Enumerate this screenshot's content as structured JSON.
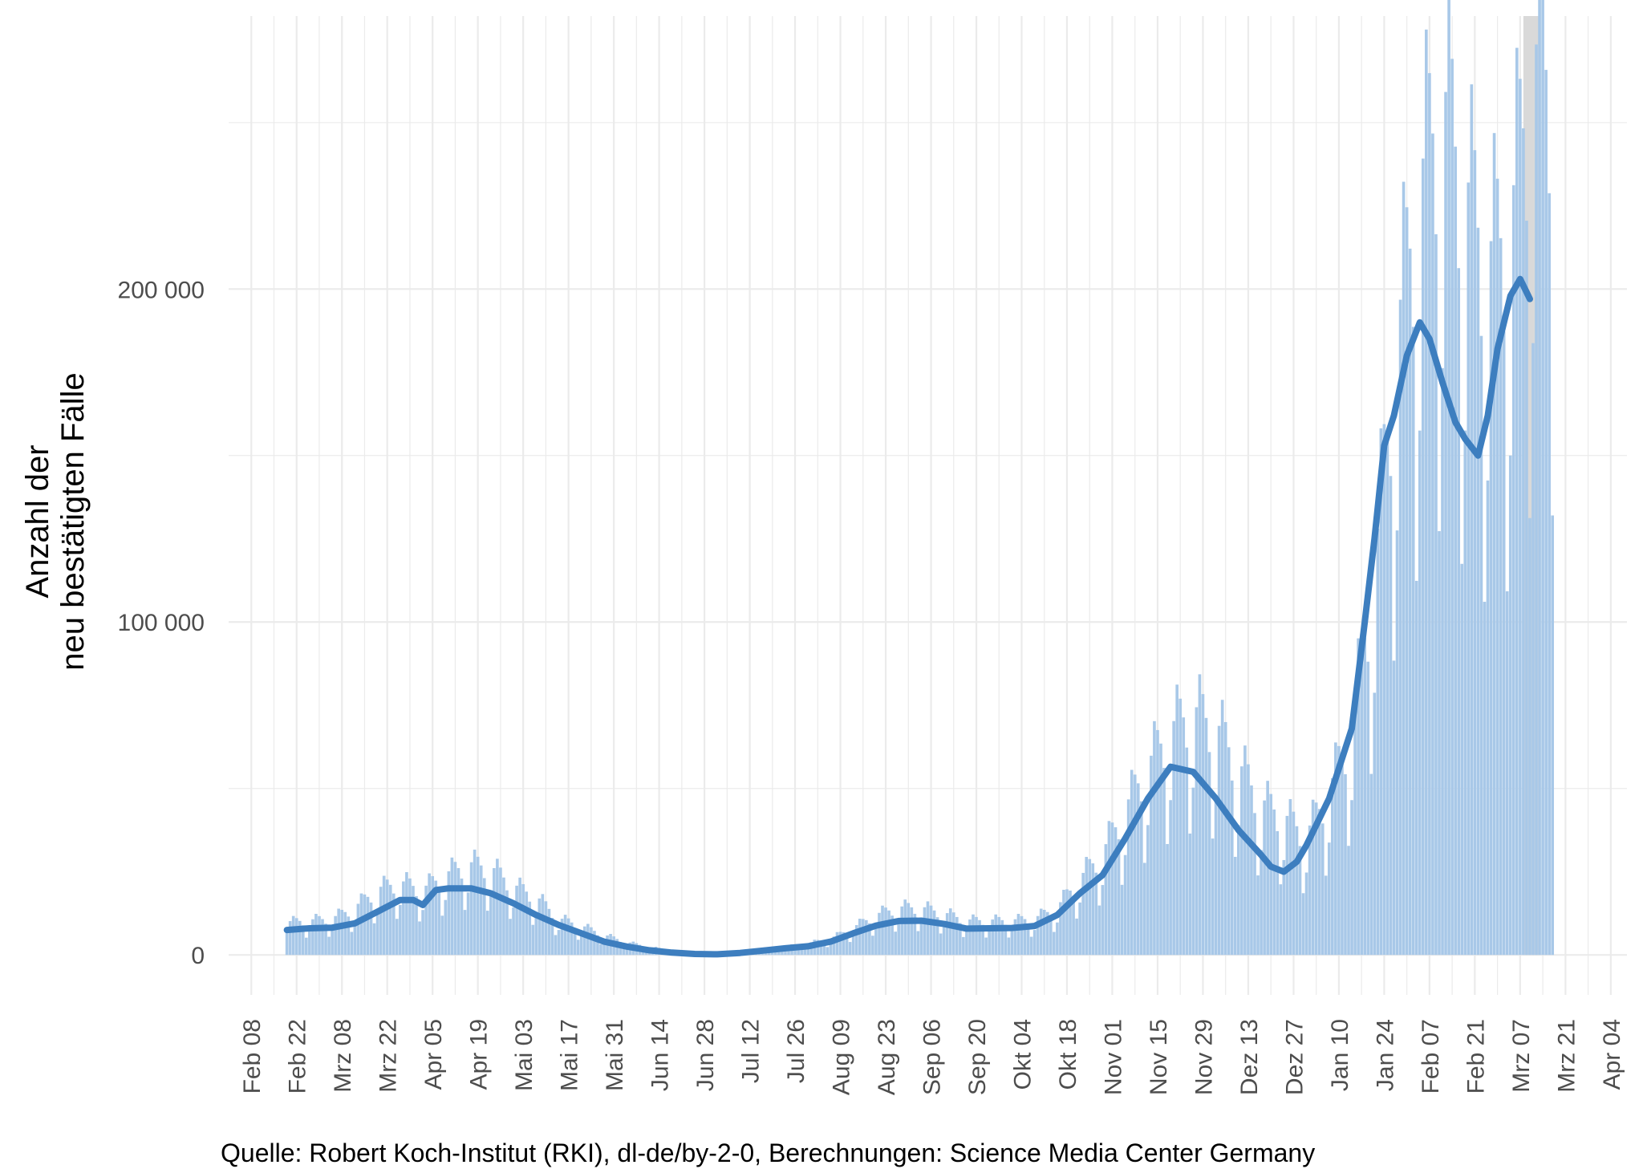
{
  "chart_data": {
    "type": "bar",
    "title": "",
    "xlabel": "",
    "ylabel": [
      "Anzahl der",
      "neu bestätigten Fälle"
    ],
    "caption": "Quelle: Robert Koch-Institut (RKI), dl-de/by-2-0, Berechnungen: Science Media Center Germany",
    "y_ticks": [
      {
        "value": 0,
        "label": "0"
      },
      {
        "value": 100000,
        "label": "100 000"
      },
      {
        "value": 200000,
        "label": "200 000"
      }
    ],
    "ylim": [
      -12000,
      282000
    ],
    "x_ticks": [
      {
        "day": 0,
        "label": "Feb 08"
      },
      {
        "day": 14,
        "label": "Feb 22"
      },
      {
        "day": 28,
        "label": "Mrz 08"
      },
      {
        "day": 42,
        "label": "Mrz 22"
      },
      {
        "day": 56,
        "label": "Apr 05"
      },
      {
        "day": 70,
        "label": "Apr 19"
      },
      {
        "day": 84,
        "label": "Mai 03"
      },
      {
        "day": 98,
        "label": "Mai 17"
      },
      {
        "day": 112,
        "label": "Mai 31"
      },
      {
        "day": 126,
        "label": "Jun 14"
      },
      {
        "day": 140,
        "label": "Jun 28"
      },
      {
        "day": 154,
        "label": "Jul 12"
      },
      {
        "day": 168,
        "label": "Jul 26"
      },
      {
        "day": 182,
        "label": "Aug 09"
      },
      {
        "day": 196,
        "label": "Aug 23"
      },
      {
        "day": 210,
        "label": "Sep 06"
      },
      {
        "day": 224,
        "label": "Sep 20"
      },
      {
        "day": 238,
        "label": "Okt 04"
      },
      {
        "day": 252,
        "label": "Okt 18"
      },
      {
        "day": 266,
        "label": "Nov 01"
      },
      {
        "day": 280,
        "label": "Nov 15"
      },
      {
        "day": 294,
        "label": "Nov 29"
      },
      {
        "day": 308,
        "label": "Dez 13"
      },
      {
        "day": 322,
        "label": "Dez 27"
      },
      {
        "day": 336,
        "label": "Jan 10"
      },
      {
        "day": 350,
        "label": "Jan 24"
      },
      {
        "day": 364,
        "label": "Feb 07"
      },
      {
        "day": 378,
        "label": "Feb 21"
      },
      {
        "day": 392,
        "label": "Mrz 07"
      },
      {
        "day": 406,
        "label": "Mrz 21"
      },
      {
        "day": 420,
        "label": "Apr 04"
      }
    ],
    "xlim_day": [
      -7,
      425
    ],
    "bar_start_day": 11,
    "daily_anchor_values": [
      [
        11,
        9000
      ],
      [
        18,
        9500
      ],
      [
        25,
        10000
      ],
      [
        32,
        13000
      ],
      [
        39,
        18000
      ],
      [
        46,
        20000
      ],
      [
        53,
        18000
      ],
      [
        60,
        22000
      ],
      [
        67,
        25000
      ],
      [
        74,
        24000
      ],
      [
        81,
        19000
      ],
      [
        88,
        16000
      ],
      [
        95,
        10000
      ],
      [
        102,
        8000
      ],
      [
        109,
        5500
      ],
      [
        116,
        3500
      ],
      [
        123,
        2200
      ],
      [
        130,
        1200
      ],
      [
        137,
        600
      ],
      [
        144,
        400
      ],
      [
        151,
        700
      ],
      [
        158,
        1400
      ],
      [
        165,
        2200
      ],
      [
        172,
        3200
      ],
      [
        179,
        4500
      ],
      [
        186,
        7500
      ],
      [
        193,
        11000
      ],
      [
        200,
        13000
      ],
      [
        207,
        13000
      ],
      [
        214,
        11500
      ],
      [
        221,
        9500
      ],
      [
        228,
        9500
      ],
      [
        235,
        9500
      ],
      [
        242,
        10000
      ],
      [
        249,
        13000
      ],
      [
        256,
        21000
      ],
      [
        263,
        28000
      ],
      [
        270,
        40000
      ],
      [
        277,
        52000
      ],
      [
        284,
        62000
      ],
      [
        291,
        67000
      ],
      [
        298,
        63000
      ],
      [
        305,
        52000
      ],
      [
        312,
        42000
      ],
      [
        319,
        38000
      ],
      [
        326,
        33000
      ],
      [
        333,
        45000
      ],
      [
        340,
        62000
      ],
      [
        347,
        105000
      ],
      [
        354,
        170000
      ],
      [
        361,
        210000
      ],
      [
        368,
        235000
      ],
      [
        375,
        210000
      ],
      [
        382,
        190000
      ],
      [
        389,
        200000
      ],
      [
        396,
        245000
      ],
      [
        402,
        240000
      ]
    ],
    "moving_average_7day": [
      [
        11,
        7500
      ],
      [
        18,
        8000
      ],
      [
        25,
        8200
      ],
      [
        32,
        9500
      ],
      [
        39,
        13000
      ],
      [
        46,
        16500
      ],
      [
        50,
        16500
      ],
      [
        53,
        15000
      ],
      [
        57,
        19500
      ],
      [
        61,
        20000
      ],
      [
        68,
        20000
      ],
      [
        74,
        18500
      ],
      [
        81,
        15500
      ],
      [
        88,
        12000
      ],
      [
        95,
        9000
      ],
      [
        102,
        6500
      ],
      [
        109,
        4000
      ],
      [
        116,
        2500
      ],
      [
        123,
        1400
      ],
      [
        130,
        700
      ],
      [
        137,
        300
      ],
      [
        144,
        200
      ],
      [
        151,
        600
      ],
      [
        158,
        1300
      ],
      [
        165,
        2000
      ],
      [
        172,
        2600
      ],
      [
        179,
        4000
      ],
      [
        186,
        6500
      ],
      [
        193,
        8800
      ],
      [
        200,
        10200
      ],
      [
        207,
        10300
      ],
      [
        214,
        9300
      ],
      [
        221,
        7900
      ],
      [
        228,
        8000
      ],
      [
        235,
        8100
      ],
      [
        242,
        8700
      ],
      [
        249,
        12000
      ],
      [
        256,
        18500
      ],
      [
        263,
        24000
      ],
      [
        270,
        35000
      ],
      [
        277,
        47000
      ],
      [
        284,
        56500
      ],
      [
        291,
        55000
      ],
      [
        298,
        47000
      ],
      [
        305,
        37500
      ],
      [
        312,
        30000
      ],
      [
        315,
        26500
      ],
      [
        319,
        25000
      ],
      [
        323,
        28000
      ],
      [
        326,
        33000
      ],
      [
        333,
        47000
      ],
      [
        340,
        68000
      ],
      [
        344,
        100000
      ],
      [
        347,
        125000
      ],
      [
        350,
        153000
      ],
      [
        353,
        162000
      ],
      [
        357,
        180000
      ],
      [
        361,
        190000
      ],
      [
        364,
        185000
      ],
      [
        368,
        172000
      ],
      [
        372,
        160000
      ],
      [
        375,
        155000
      ],
      [
        379,
        150000
      ],
      [
        382,
        162000
      ],
      [
        385,
        182000
      ],
      [
        389,
        198000
      ],
      [
        392,
        203000
      ],
      [
        395,
        197000
      ]
    ],
    "highlight_day": 393,
    "colors": {
      "bars": "#a8c8e8",
      "line": "#3d7ebf",
      "grid": "#ebebeb",
      "highlight": "#d9d9d9"
    }
  }
}
